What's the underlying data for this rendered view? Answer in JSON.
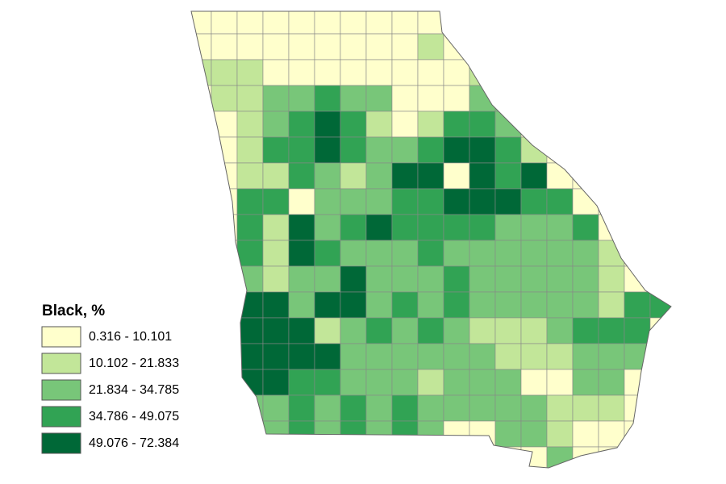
{
  "legend": {
    "title": "Black, %",
    "items": [
      {
        "label": "0.316 - 10.101",
        "color": "#ffffcc"
      },
      {
        "label": "10.102 - 21.833",
        "color": "#c2e699"
      },
      {
        "label": "21.834 - 34.785",
        "color": "#78c679"
      },
      {
        "label": "34.786 - 49.075",
        "color": "#31a354"
      },
      {
        "label": "49.076 - 72.384",
        "color": "#006837"
      }
    ]
  }
}
